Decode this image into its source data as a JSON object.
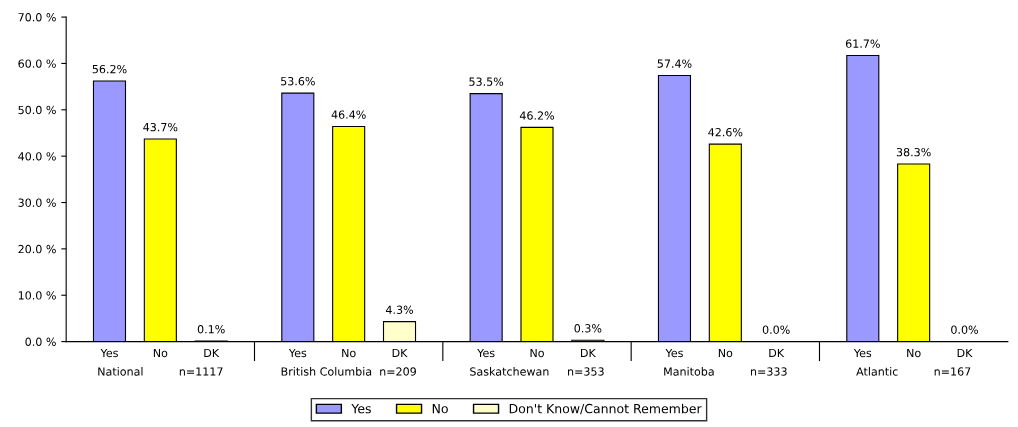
{
  "chart_data": {
    "type": "bar",
    "categories": [
      "National          n=1117",
      "British Columbia  n=209",
      "Saskatchewan     n=353",
      "Manitoba          n=333",
      "Atlantic          n=167"
    ],
    "annotations": [
      "Yes",
      "No",
      "DK"
    ],
    "series": [
      {
        "name": "Yes",
        "color": "#9999ff",
        "values": [
          56.2,
          53.6,
          53.5,
          57.4,
          61.7
        ],
        "value_labels": [
          "56.2%",
          "53.6%",
          "53.5%",
          "57.4%",
          "61.7%"
        ]
      },
      {
        "name": "No",
        "color": "#ffff00",
        "values": [
          43.7,
          46.4,
          46.2,
          42.6,
          38.3
        ],
        "value_labels": [
          "43.7%",
          "46.4%",
          "46.2%",
          "42.6%",
          "38.3%"
        ]
      },
      {
        "name": "Don't Know/Cannot Remember",
        "color": "#ffffcc",
        "values": [
          0.1,
          4.3,
          0.3,
          0.0,
          0.0
        ],
        "value_labels": [
          "0.1%",
          "4.3%",
          "0.3%",
          "0.0%",
          "0.0%"
        ]
      }
    ],
    "ylim": [
      0,
      70
    ],
    "yticks": [
      {
        "value": 0,
        "label": "0.0 %"
      },
      {
        "value": 10,
        "label": "10.0 %"
      },
      {
        "value": 20,
        "label": "20.0 %"
      },
      {
        "value": 30,
        "label": "30.0 %"
      },
      {
        "value": 40,
        "label": "40.0 %"
      },
      {
        "value": 50,
        "label": "50.0 %"
      },
      {
        "value": 60,
        "label": "60.0 %"
      },
      {
        "value": 70,
        "label": "70.0 %"
      }
    ],
    "legend": "bottom",
    "grid": false
  }
}
